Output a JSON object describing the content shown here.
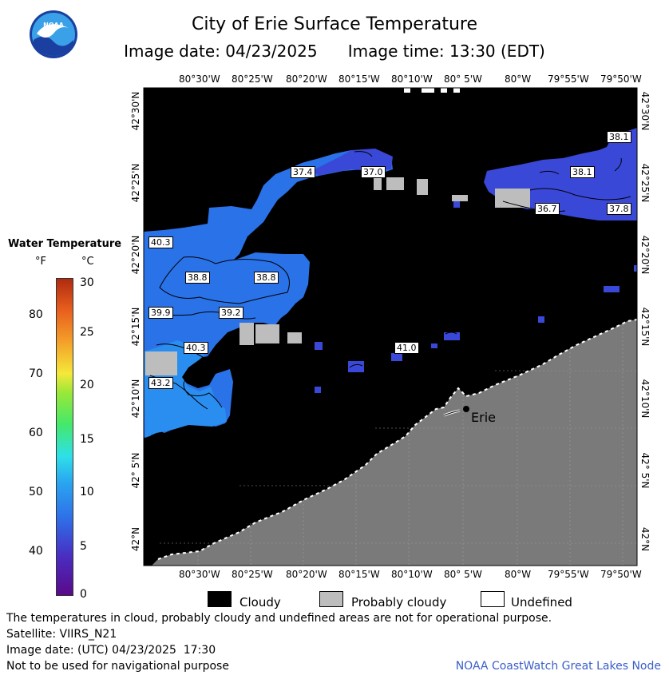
{
  "header": {
    "title": "City of Erie Surface Temperature",
    "image_date": "Image date: 04/23/2025",
    "image_time": "Image time: 13:30 (EDT)"
  },
  "logo": {
    "text": "NOAA"
  },
  "axes": {
    "lon_top": [
      "80°30'W",
      "80°25'W",
      "80°20'W",
      "80°15'W",
      "80°10'W",
      "80° 5'W",
      "80°W",
      "79°55'W",
      "79°50'W"
    ],
    "lon_bottom": [
      "80°30'W",
      "80°25'W",
      "80°20'W",
      "80°15'W",
      "80°10'W",
      "80° 5'W",
      "80°W",
      "79°55'W",
      "79°50'W"
    ],
    "lat": [
      "42°30'N",
      "42°25'N",
      "42°20'N",
      "42°15'N",
      "42°10'N",
      "42° 5'N",
      "42°N"
    ]
  },
  "legend": {
    "title": "Water Temperature",
    "unit_f": "°F",
    "unit_c": "°C",
    "f_ticks": [
      "80",
      "70",
      "60",
      "50",
      "40"
    ],
    "c_ticks": [
      "30",
      "25",
      "20",
      "15",
      "10",
      "5",
      "0"
    ]
  },
  "contour_labels": [
    "38.1",
    "37.4",
    "37.0",
    "38.1",
    "36.7",
    "37.8",
    "40.3",
    "38.8",
    "38.8",
    "39.9",
    "39.2",
    "40.3",
    "41.0",
    "43.2"
  ],
  "city": {
    "name": "Erie"
  },
  "key": {
    "cloudy": "Cloudy",
    "probably_cloudy": "Probably cloudy",
    "undefined": "Undefined"
  },
  "footer": {
    "note": "The temperatures in cloud, probably cloudy and undefined areas are not for operational purpose.",
    "satellite": "Satellite: VIIRS_N21",
    "utc_date": "Image date: (UTC) 04/23/2025  17:30",
    "nav": "Not to be used for navigational purpose",
    "credit": "NOAA CoastWatch Great Lakes Node"
  },
  "colors": {
    "cloud": "#000000",
    "land": "#7a7a7a",
    "probably_cloudy": "#bdbdbd",
    "water_cold": "#3a48d8",
    "water_mid": "#2a72e8",
    "water_warm": "#2a8ef0"
  }
}
